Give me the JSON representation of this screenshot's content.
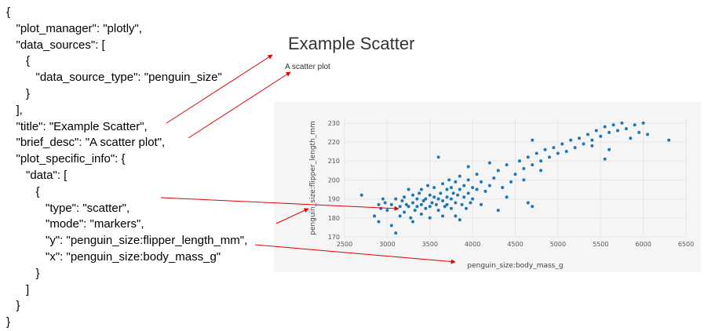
{
  "code_lines": [
    "{",
    "   \"plot_manager\": \"plotly\",",
    "   \"data_sources\": [",
    "      {",
    "         \"data_source_type\": \"penguin_size\"",
    "      }",
    "   ],",
    "   \"title\": \"Example Scatter\",",
    "   \"brief_desc\": \"A scatter plot\",",
    "   \"plot_specific_info\": {",
    "      \"data\": [",
    "         {",
    "            \"type\": \"scatter\",",
    "            \"mode\": \"markers\",",
    "            \"y\": \"penguin_size:flipper_length_mm\",",
    "            \"x\": \"penguin_size:body_mass_g\"",
    "         }",
    "      ]",
    "   }",
    "}"
  ],
  "plot": {
    "title": "Example Scatter",
    "desc": "A scatter plot"
  },
  "colors": {
    "marker": "#1f77b4",
    "arrow": "#e00000",
    "plot_bg": "#f5f5f5",
    "grid": "#e6e6e6"
  },
  "chart_data": {
    "type": "scatter",
    "title": "Example Scatter",
    "xlabel": "penguin_size:body_mass_g",
    "ylabel": "penguin_size:flipper_length_mm",
    "xlim": [
      2500,
      6500
    ],
    "ylim": [
      170,
      232
    ],
    "xticks": [
      2500,
      3000,
      3500,
      4000,
      4500,
      5000,
      5500,
      6000,
      6500
    ],
    "yticks": [
      170,
      180,
      190,
      200,
      210,
      220,
      230
    ],
    "grid": true,
    "points": [
      [
        2700,
        192
      ],
      [
        2850,
        181
      ],
      [
        2900,
        187
      ],
      [
        2900,
        178
      ],
      [
        2925,
        185
      ],
      [
        2950,
        190
      ],
      [
        2975,
        188
      ],
      [
        3000,
        184
      ],
      [
        3050,
        187
      ],
      [
        3050,
        176
      ],
      [
        3100,
        190
      ],
      [
        3100,
        172
      ],
      [
        3150,
        186
      ],
      [
        3175,
        189
      ],
      [
        3200,
        191
      ],
      [
        3200,
        183
      ],
      [
        3225,
        187
      ],
      [
        3250,
        186
      ],
      [
        3250,
        195
      ],
      [
        3275,
        180
      ],
      [
        3300,
        188
      ],
      [
        3300,
        192
      ],
      [
        3325,
        184
      ],
      [
        3350,
        190
      ],
      [
        3350,
        186
      ],
      [
        3375,
        193
      ],
      [
        3400,
        187
      ],
      [
        3400,
        182
      ],
      [
        3400,
        195
      ],
      [
        3425,
        189
      ],
      [
        3450,
        190
      ],
      [
        3450,
        185
      ],
      [
        3475,
        197
      ],
      [
        3500,
        186
      ],
      [
        3500,
        192
      ],
      [
        3500,
        180
      ],
      [
        3525,
        188
      ],
      [
        3550,
        191
      ],
      [
        3550,
        196
      ],
      [
        3575,
        187
      ],
      [
        3600,
        190
      ],
      [
        3600,
        184
      ],
      [
        3625,
        193
      ],
      [
        3650,
        189
      ],
      [
        3650,
        198
      ],
      [
        3650,
        181
      ],
      [
        3675,
        186
      ],
      [
        3700,
        191
      ],
      [
        3700,
        195
      ],
      [
        3700,
        187
      ],
      [
        3725,
        200
      ],
      [
        3750,
        190
      ],
      [
        3750,
        185
      ],
      [
        3750,
        196
      ],
      [
        3775,
        193
      ],
      [
        3800,
        188
      ],
      [
        3800,
        199
      ],
      [
        3800,
        181
      ],
      [
        3825,
        192
      ],
      [
        3850,
        195
      ],
      [
        3850,
        202
      ],
      [
        3875,
        187
      ],
      [
        3900,
        191
      ],
      [
        3900,
        197
      ],
      [
        3925,
        185
      ],
      [
        3950,
        193
      ],
      [
        3950,
        200
      ],
      [
        3975,
        188
      ],
      [
        4000,
        196
      ],
      [
        4000,
        190
      ],
      [
        4050,
        195
      ],
      [
        4050,
        203
      ],
      [
        4100,
        199
      ],
      [
        4100,
        187
      ],
      [
        4150,
        194
      ],
      [
        4200,
        197
      ],
      [
        4250,
        201
      ],
      [
        4300,
        205
      ],
      [
        4350,
        196
      ],
      [
        4400,
        208
      ],
      [
        4450,
        199
      ],
      [
        4500,
        203
      ],
      [
        4550,
        210
      ],
      [
        4600,
        206
      ],
      [
        4650,
        212
      ],
      [
        4700,
        208
      ],
      [
        4750,
        214
      ],
      [
        4800,
        210
      ],
      [
        4850,
        216
      ],
      [
        4900,
        212
      ],
      [
        4950,
        217
      ],
      [
        5000,
        214
      ],
      [
        5050,
        219
      ],
      [
        5100,
        215
      ],
      [
        5150,
        221
      ],
      [
        5200,
        217
      ],
      [
        5250,
        222
      ],
      [
        5300,
        219
      ],
      [
        5350,
        224
      ],
      [
        5400,
        221
      ],
      [
        5450,
        226
      ],
      [
        5500,
        223
      ],
      [
        5550,
        228
      ],
      [
        5600,
        225
      ],
      [
        5650,
        229
      ],
      [
        5700,
        226
      ],
      [
        5750,
        230
      ],
      [
        5800,
        227
      ],
      [
        5850,
        222
      ],
      [
        5900,
        229
      ],
      [
        5950,
        225
      ],
      [
        6000,
        230
      ],
      [
        6050,
        224
      ],
      [
        6300,
        221
      ],
      [
        4650,
        188
      ],
      [
        4700,
        186
      ],
      [
        4300,
        184
      ],
      [
        3600,
        212
      ],
      [
        4400,
        191
      ],
      [
        3300,
        178
      ],
      [
        5400,
        218
      ],
      [
        5600,
        216
      ],
      [
        4800,
        205
      ],
      [
        4600,
        200
      ],
      [
        3150,
        181
      ],
      [
        3950,
        207
      ],
      [
        4700,
        221
      ],
      [
        5550,
        211
      ],
      [
        4200,
        209
      ],
      [
        3850,
        179
      ]
    ]
  }
}
